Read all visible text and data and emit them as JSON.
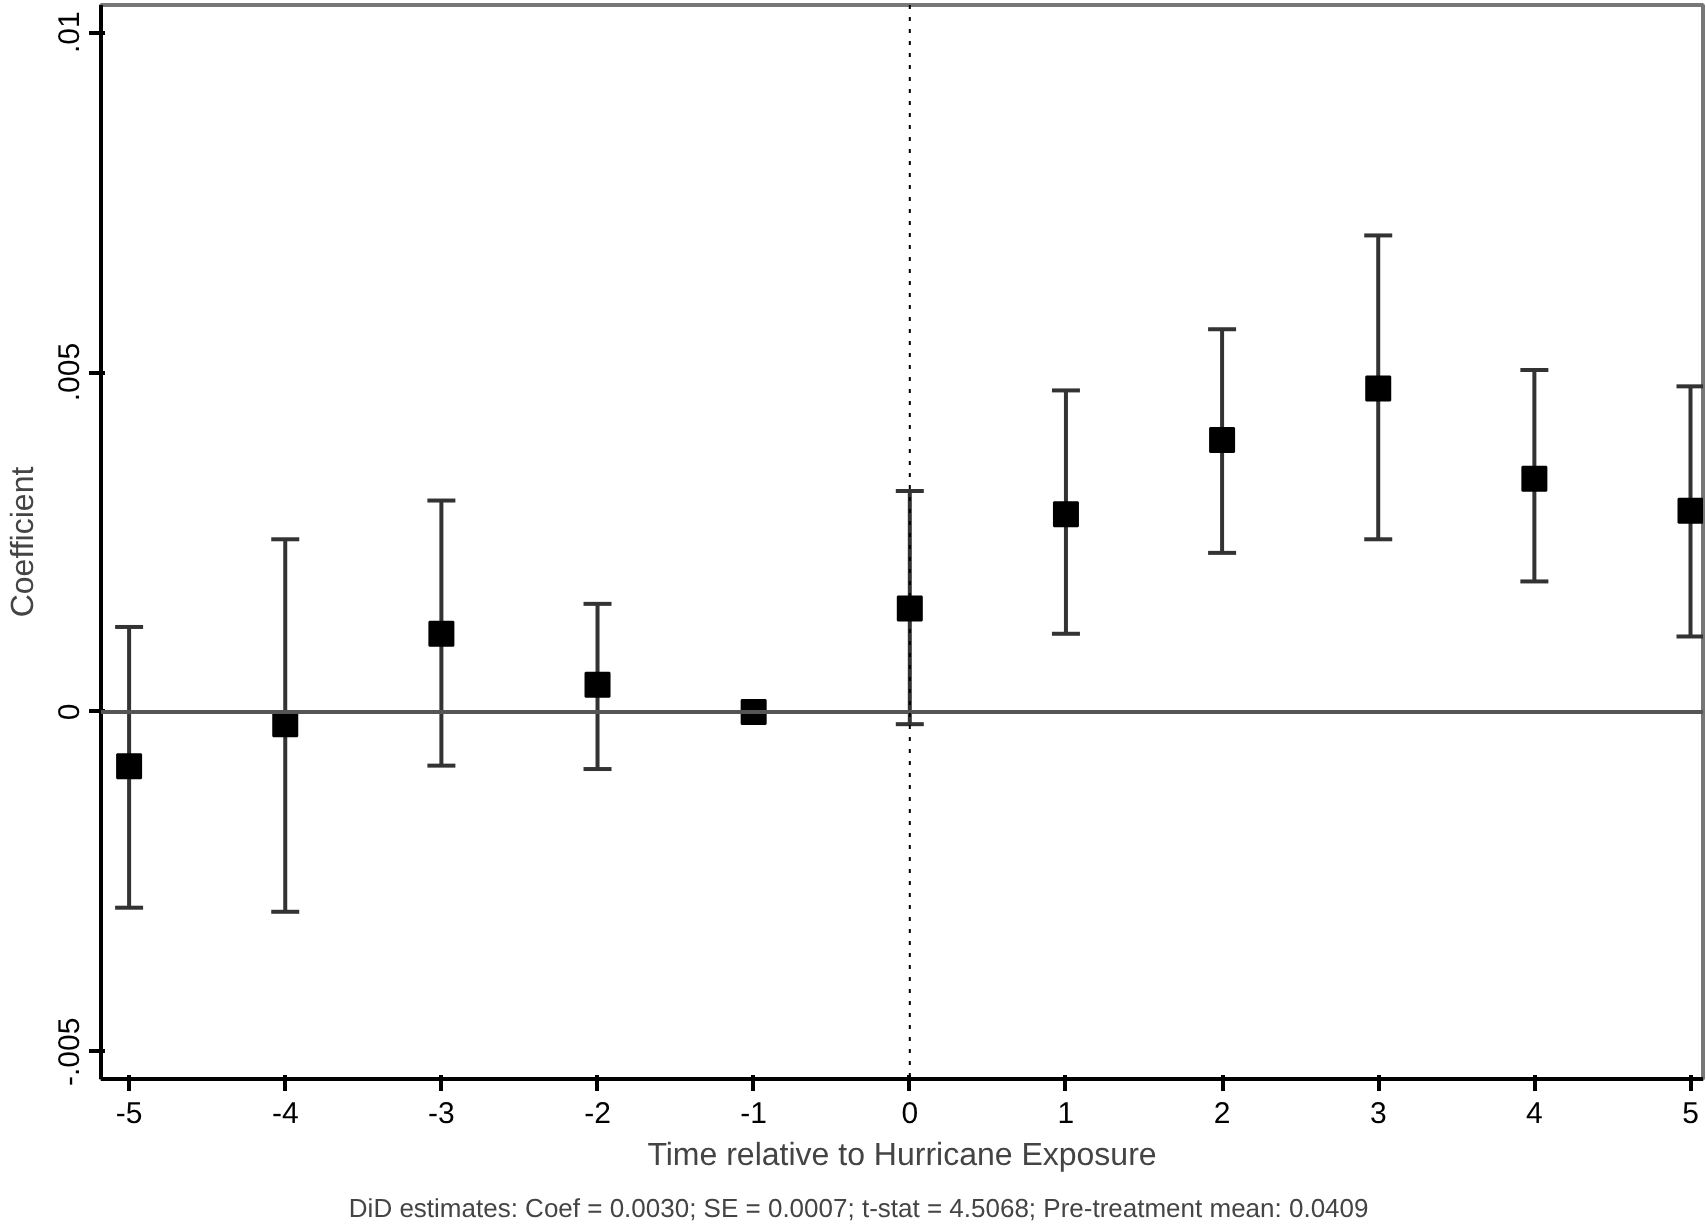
{
  "chart_data": {
    "type": "scatter",
    "xlabel": "Time relative to Hurricane Exposure",
    "ylabel": "Coefficient",
    "annotations": [
      "DiD estimates: Coef =    0.0030; SE =    0.0007; t-stat =    4.5068; Pre-treatment mean:    0.0409"
    ],
    "x": [
      -5,
      -4,
      -3,
      -2,
      -1,
      0,
      1,
      2,
      3,
      4,
      5
    ],
    "series": [
      {
        "color": "#000000",
        "values": [
          -0.0008,
          -0.00018,
          0.00115,
          0.0004,
          0,
          0.00152,
          0.00291,
          0.004,
          0.00476,
          0.00343,
          0.00296
        ],
        "errors": [
          [
            -0.00288,
            0.00125
          ],
          [
            -0.00294,
            0.00254
          ],
          [
            -0.00079,
            0.00311
          ],
          [
            -0.00084,
            0.00159
          ],
          null,
          [
            -0.00018,
            0.00325
          ],
          [
            0.00115,
            0.00473
          ],
          [
            0.00234,
            0.00563
          ],
          [
            0.00254,
            0.00701
          ],
          [
            0.00192,
            0.00503
          ],
          [
            0.00111,
            0.00479
          ]
        ]
      }
    ],
    "xlim": [
      -5.18,
      5.08
    ],
    "ylim": [
      -0.0054,
      0.0104
    ],
    "xticks": [
      -5,
      -4,
      -3,
      -2,
      -1,
      0,
      1,
      2,
      3,
      4,
      5
    ],
    "yticks": [
      {
        "value": -0.005,
        "label": "-.005"
      },
      {
        "value": 0,
        "label": "0"
      },
      {
        "value": 0.005,
        "label": ".005"
      },
      {
        "value": 0.01,
        "label": ".01"
      }
    ],
    "ref_lines": [
      {
        "axis": "y",
        "value": 0,
        "color": "#555555",
        "line_style": "solid"
      },
      {
        "axis": "x",
        "value": 0,
        "color": "#000000",
        "line_style": "dotted"
      }
    ],
    "marker": "square"
  }
}
